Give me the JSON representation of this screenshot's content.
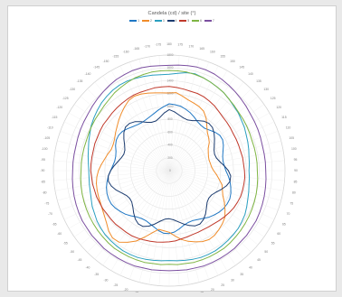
{
  "chart_data": {
    "type": "line",
    "subtype": "polar",
    "title": "Candela  (cd) / site (°)",
    "angle_labels": [
      "180",
      "175",
      "170",
      "165",
      "160",
      "155",
      "150",
      "145",
      "140",
      "135",
      "130",
      "125",
      "120",
      "115",
      "110",
      "105",
      "100",
      "95",
      "90",
      "85",
      "80",
      "75",
      "70",
      "65",
      "60",
      "55",
      "50",
      "45",
      "40",
      "35",
      "30",
      "25",
      "20",
      "15",
      "10",
      "5",
      "0",
      "-5",
      "-10",
      "-15",
      "-20",
      "-25",
      "-30",
      "-35",
      "-40",
      "-45",
      "-50",
      "-55",
      "-60",
      "-65",
      "-70",
      "-75",
      "-80",
      "-85",
      "-90",
      "-95",
      "-100",
      "-105",
      "-110",
      "-115",
      "-120",
      "-125",
      "-130",
      "-135",
      "-140",
      "-145",
      "-150",
      "-155",
      "-160",
      "-165",
      "-170",
      "-175"
    ],
    "radial_ticks": [
      0,
      200,
      400,
      600,
      800,
      1000,
      1200,
      1400,
      1600,
      1800
    ],
    "radial_tick_labels": [
      "0",
      "200",
      "400",
      "600",
      "800",
      "1000",
      "1200",
      "1400",
      "1600",
      "1800"
    ],
    "rmax": 1800,
    "grid": true,
    "legend_position": "top",
    "series": [
      {
        "name": "1",
        "color": "#1f77c4",
        "values": [
          1040,
          1030,
          1020,
          990,
          960,
          920,
          880,
          860,
          860,
          890,
          930,
          960,
          960,
          930,
          890,
          860,
          850,
          860,
          880,
          920,
          960,
          990,
          1020,
          1040,
          1040,
          1030,
          1010,
          980,
          950,
          910,
          880,
          860,
          860,
          880,
          920,
          960,
          980,
          980,
          950,
          910,
          880,
          860,
          860,
          880,
          920,
          960,
          990,
          1020,
          1040,
          1040,
          1030,
          1010,
          980,
          950,
          910,
          880,
          860,
          860,
          880,
          920,
          950,
          960,
          950,
          920,
          890,
          870,
          860,
          870,
          890,
          920,
          960,
          1000
        ]
      },
      {
        "name": "2",
        "color": "#f08c2a",
        "values": [
          1210,
          1220,
          1180,
          1140,
          1120,
          1100,
          1070,
          1000,
          910,
          840,
          800,
          760,
          700,
          670,
          650,
          640,
          650,
          660,
          690,
          740,
          790,
          850,
          880,
          920,
          990,
          1060,
          1130,
          1170,
          1200,
          1230,
          1240,
          1220,
          1180,
          1140,
          1090,
          1020,
          960,
          940,
          930,
          1000,
          1100,
          1210,
          1290,
          1360,
          1370,
          1330,
          1270,
          1230,
          1200,
          1180,
          1170,
          1160,
          1150,
          1130,
          1100,
          1060,
          1020,
          990,
          960,
          960,
          980,
          1020,
          1060,
          1110,
          1160,
          1210,
          1260,
          1280,
          1270,
          1250,
          1230,
          1215
        ]
      },
      {
        "name": "3",
        "color": "#2a9fc0",
        "values": [
          1500,
          1520,
          1550,
          1560,
          1540,
          1520,
          1500,
          1480,
          1450,
          1420,
          1400,
          1370,
          1350,
          1320,
          1300,
          1280,
          1260,
          1250,
          1240,
          1250,
          1260,
          1280,
          1300,
          1330,
          1360,
          1380,
          1400,
          1410,
          1420,
          1430,
          1440,
          1440,
          1440,
          1430,
          1420,
          1410,
          1400,
          1410,
          1420,
          1430,
          1440,
          1440,
          1440,
          1430,
          1420,
          1410,
          1390,
          1370,
          1340,
          1320,
          1290,
          1270,
          1260,
          1250,
          1250,
          1260,
          1280,
          1300,
          1330,
          1360,
          1400,
          1430,
          1460,
          1490,
          1510,
          1530,
          1540,
          1540,
          1530,
          1520,
          1510,
          1500
        ]
      },
      {
        "name": "4",
        "color": "#1b3b6f",
        "values": [
          950,
          920,
          880,
          850,
          840,
          860,
          900,
          940,
          960,
          950,
          910,
          860,
          810,
          770,
          750,
          760,
          800,
          860,
          920,
          960,
          960,
          920,
          860,
          800,
          760,
          750,
          770,
          820,
          880,
          930,
          960,
          950,
          910,
          860,
          810,
          770,
          750,
          760,
          800,
          860,
          920,
          960,
          960,
          920,
          860,
          800,
          760,
          750,
          770,
          820,
          880,
          930,
          960,
          950,
          910,
          860,
          810,
          770,
          750,
          760,
          800,
          860,
          920,
          960,
          960,
          930,
          880,
          830,
          800,
          800,
          840,
          900
        ]
      },
      {
        "name": "5",
        "color": "#c0392b",
        "values": [
          1310,
          1300,
          1290,
          1280,
          1280,
          1270,
          1250,
          1230,
          1200,
          1180,
          1170,
          1160,
          1150,
          1150,
          1150,
          1150,
          1160,
          1160,
          1170,
          1180,
          1180,
          1180,
          1180,
          1170,
          1160,
          1140,
          1120,
          1100,
          1080,
          1070,
          1060,
          1060,
          1060,
          1070,
          1080,
          1100,
          1110,
          1120,
          1130,
          1140,
          1150,
          1160,
          1170,
          1170,
          1170,
          1180,
          1180,
          1180,
          1190,
          1190,
          1200,
          1200,
          1210,
          1210,
          1220,
          1220,
          1220,
          1220,
          1230,
          1230,
          1240,
          1250,
          1250,
          1260,
          1270,
          1280,
          1290,
          1300,
          1300,
          1300,
          1310,
          1310
        ]
      },
      {
        "name": "6",
        "color": "#7fb544",
        "values": [
          1560,
          1560,
          1560,
          1550,
          1540,
          1520,
          1500,
          1480,
          1450,
          1430,
          1410,
          1400,
          1390,
          1380,
          1370,
          1370,
          1370,
          1370,
          1370,
          1380,
          1390,
          1400,
          1410,
          1420,
          1430,
          1440,
          1450,
          1460,
          1470,
          1480,
          1480,
          1480,
          1480,
          1480,
          1470,
          1470,
          1460,
          1470,
          1470,
          1480,
          1480,
          1480,
          1480,
          1480,
          1470,
          1460,
          1450,
          1440,
          1430,
          1420,
          1410,
          1400,
          1390,
          1380,
          1370,
          1370,
          1370,
          1370,
          1370,
          1380,
          1390,
          1400,
          1410,
          1430,
          1450,
          1480,
          1500,
          1520,
          1540,
          1550,
          1560,
          1560
        ]
      },
      {
        "name": "7",
        "color": "#7b4fa0",
        "values": [
          1640,
          1650,
          1660,
          1670,
          1670,
          1660,
          1640,
          1620,
          1600,
          1580,
          1560,
          1540,
          1530,
          1520,
          1510,
          1500,
          1500,
          1500,
          1500,
          1510,
          1520,
          1530,
          1540,
          1550,
          1560,
          1560,
          1570,
          1570,
          1580,
          1580,
          1580,
          1580,
          1580,
          1570,
          1570,
          1560,
          1560,
          1560,
          1570,
          1570,
          1580,
          1580,
          1580,
          1580,
          1580,
          1570,
          1570,
          1560,
          1560,
          1550,
          1540,
          1530,
          1520,
          1510,
          1500,
          1500,
          1500,
          1500,
          1510,
          1520,
          1530,
          1540,
          1560,
          1580,
          1600,
          1620,
          1640,
          1650,
          1660,
          1660,
          1650,
          1640
        ]
      }
    ]
  }
}
